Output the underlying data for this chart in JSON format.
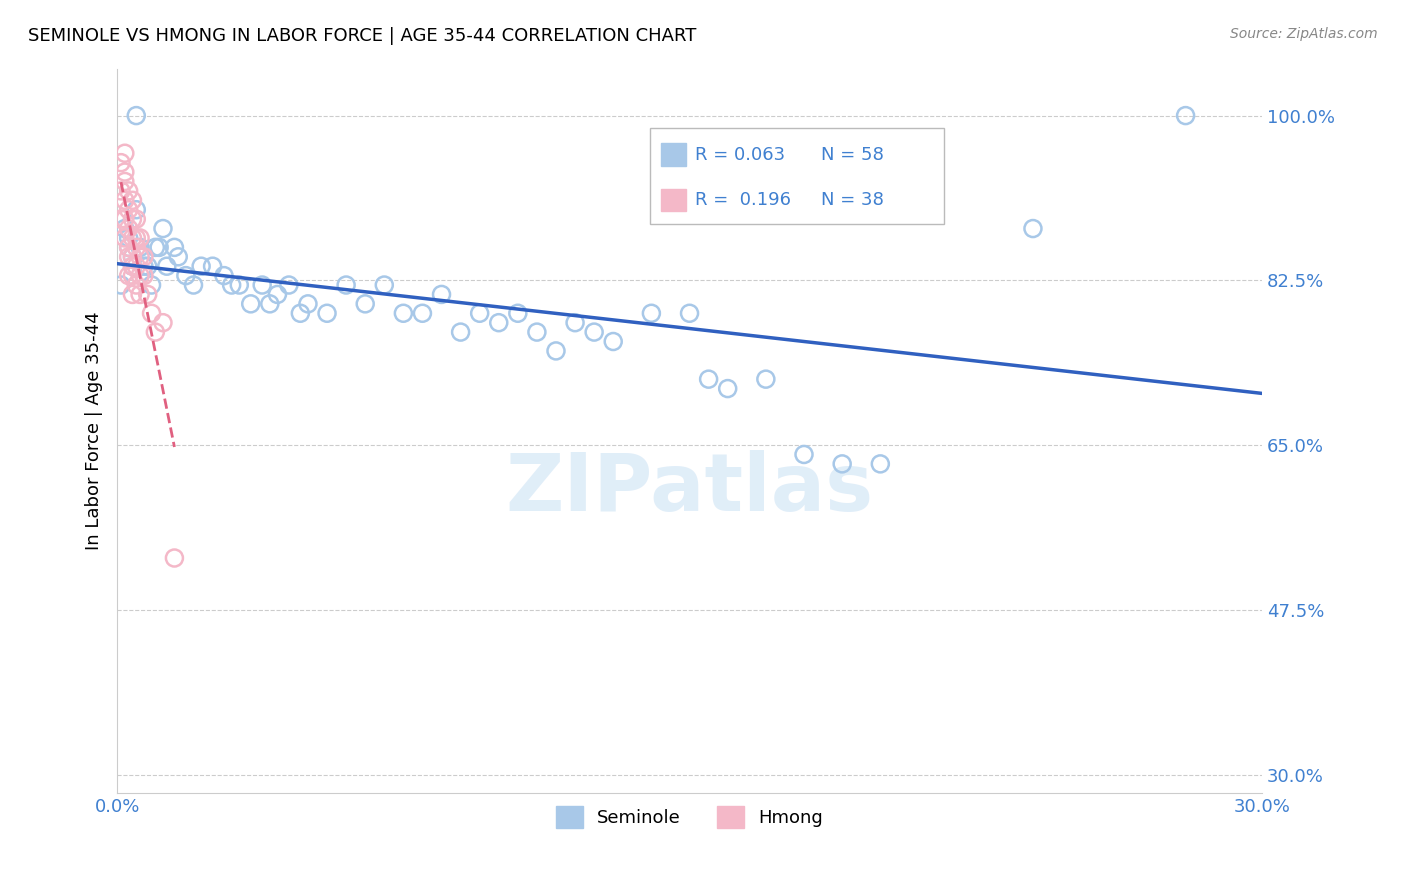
{
  "title": "SEMINOLE VS HMONG IN LABOR FORCE | AGE 35-44 CORRELATION CHART",
  "source": "Source: ZipAtlas.com",
  "ylabel": "In Labor Force | Age 35-44",
  "xlim": [
    0.0,
    0.3
  ],
  "ylim": [
    0.28,
    1.05
  ],
  "yticks": [
    0.3,
    0.475,
    0.65,
    0.825,
    1.0
  ],
  "ytick_labels": [
    "30.0%",
    "47.5%",
    "65.0%",
    "82.5%",
    "100.0%"
  ],
  "xticks": [
    0.0,
    0.05,
    0.1,
    0.15,
    0.2,
    0.25,
    0.3
  ],
  "xtick_labels": [
    "0.0%",
    "",
    "",
    "",
    "",
    "",
    "30.0%"
  ],
  "seminole_color": "#a8c8e8",
  "hmong_color": "#f4b8c8",
  "trend_seminole_color": "#3060c0",
  "trend_hmong_color": "#e06080",
  "legend_R_seminole": "0.063",
  "legend_N_seminole": "58",
  "legend_R_hmong": "0.196",
  "legend_N_hmong": "38",
  "watermark": "ZIPatlas",
  "seminole_x": [
    0.001,
    0.002,
    0.003,
    0.003,
    0.004,
    0.004,
    0.005,
    0.005,
    0.006,
    0.007,
    0.008,
    0.009,
    0.01,
    0.011,
    0.012,
    0.013,
    0.015,
    0.016,
    0.018,
    0.02,
    0.022,
    0.025,
    0.028,
    0.03,
    0.032,
    0.035,
    0.038,
    0.04,
    0.042,
    0.045,
    0.048,
    0.05,
    0.055,
    0.06,
    0.065,
    0.07,
    0.075,
    0.08,
    0.085,
    0.09,
    0.095,
    0.1,
    0.105,
    0.11,
    0.115,
    0.12,
    0.125,
    0.13,
    0.14,
    0.15,
    0.155,
    0.16,
    0.17,
    0.18,
    0.19,
    0.2,
    0.24,
    0.28
  ],
  "seminole_y": [
    0.82,
    0.88,
    0.87,
    0.86,
    0.85,
    0.84,
    0.9,
    1.0,
    0.86,
    0.84,
    0.84,
    0.82,
    0.86,
    0.86,
    0.88,
    0.84,
    0.86,
    0.85,
    0.83,
    0.82,
    0.84,
    0.84,
    0.83,
    0.82,
    0.82,
    0.8,
    0.82,
    0.8,
    0.81,
    0.82,
    0.79,
    0.8,
    0.79,
    0.82,
    0.8,
    0.82,
    0.79,
    0.79,
    0.81,
    0.77,
    0.79,
    0.78,
    0.79,
    0.77,
    0.75,
    0.78,
    0.77,
    0.76,
    0.79,
    0.79,
    0.72,
    0.71,
    0.72,
    0.64,
    0.63,
    0.63,
    0.88,
    1.0
  ],
  "hmong_x": [
    0.001,
    0.001,
    0.001,
    0.002,
    0.002,
    0.002,
    0.002,
    0.002,
    0.002,
    0.003,
    0.003,
    0.003,
    0.003,
    0.003,
    0.003,
    0.004,
    0.004,
    0.004,
    0.004,
    0.004,
    0.004,
    0.004,
    0.005,
    0.005,
    0.005,
    0.005,
    0.005,
    0.006,
    0.006,
    0.006,
    0.006,
    0.007,
    0.007,
    0.008,
    0.009,
    0.01,
    0.012,
    0.015
  ],
  "hmong_y": [
    0.95,
    0.92,
    0.89,
    0.96,
    0.94,
    0.93,
    0.91,
    0.89,
    0.87,
    0.92,
    0.9,
    0.88,
    0.86,
    0.85,
    0.83,
    0.91,
    0.89,
    0.87,
    0.85,
    0.84,
    0.83,
    0.81,
    0.89,
    0.87,
    0.86,
    0.84,
    0.82,
    0.87,
    0.85,
    0.83,
    0.81,
    0.85,
    0.83,
    0.81,
    0.79,
    0.77,
    0.78,
    0.53
  ]
}
